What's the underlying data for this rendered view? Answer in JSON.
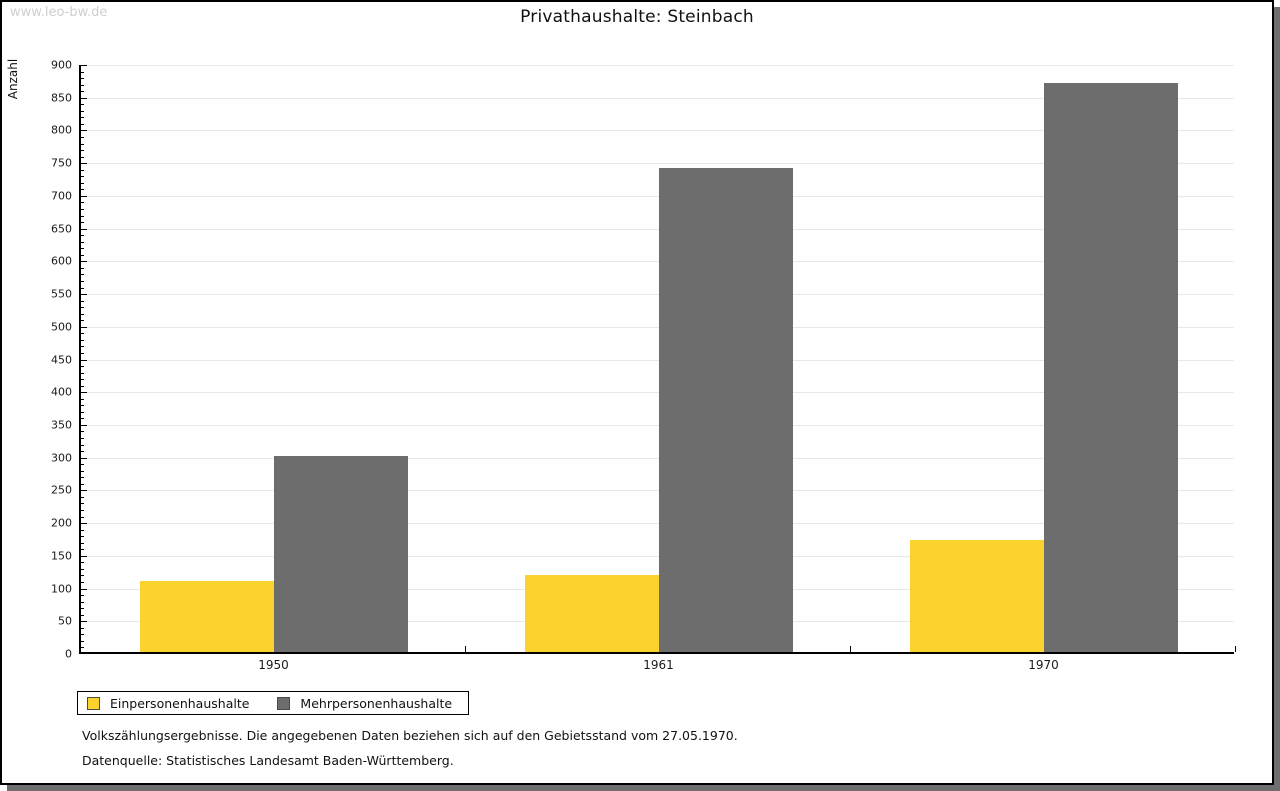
{
  "watermark": "www.leo-bw.de",
  "title": "Privathaushalte: Steinbach",
  "footer": {
    "line1": "Volkszählungsergebnisse. Die angegebenen Daten beziehen sich auf den Gebietsstand vom 27.05.1970.",
    "line2": "Datenquelle: Statistisches Landesamt Baden-Württemberg."
  },
  "colors": {
    "series1": "#fcd32d",
    "series2": "#6d6d6d",
    "gridline": "#e8e8e8",
    "axis": "#000000",
    "watermark": "#cfcfcf",
    "frame_shadow": "#6e6e6e"
  },
  "chart_data": {
    "type": "bar",
    "title": "Privathaushalte: Steinbach",
    "categories": [
      "1950",
      "1961",
      "1970"
    ],
    "series": [
      {
        "name": "Einpersonenhaushalte",
        "color": "#fcd32d",
        "values": [
          108,
          117,
          171
        ]
      },
      {
        "name": "Mehrpersonenhaushalte",
        "color": "#6d6d6d",
        "values": [
          300,
          740,
          870
        ]
      }
    ],
    "xlabel": "",
    "ylabel": "Anzahl",
    "ylim": [
      0,
      900
    ],
    "ytick_major": 50,
    "ytick_minor": 10,
    "ytick_labels": [
      "0",
      "50",
      "100",
      "150",
      "200",
      "250",
      "300",
      "350",
      "400",
      "450",
      "500",
      "550",
      "600",
      "650",
      "700",
      "750",
      "800",
      "850",
      "900"
    ],
    "grid": true,
    "legend_position": "bottom-left"
  }
}
